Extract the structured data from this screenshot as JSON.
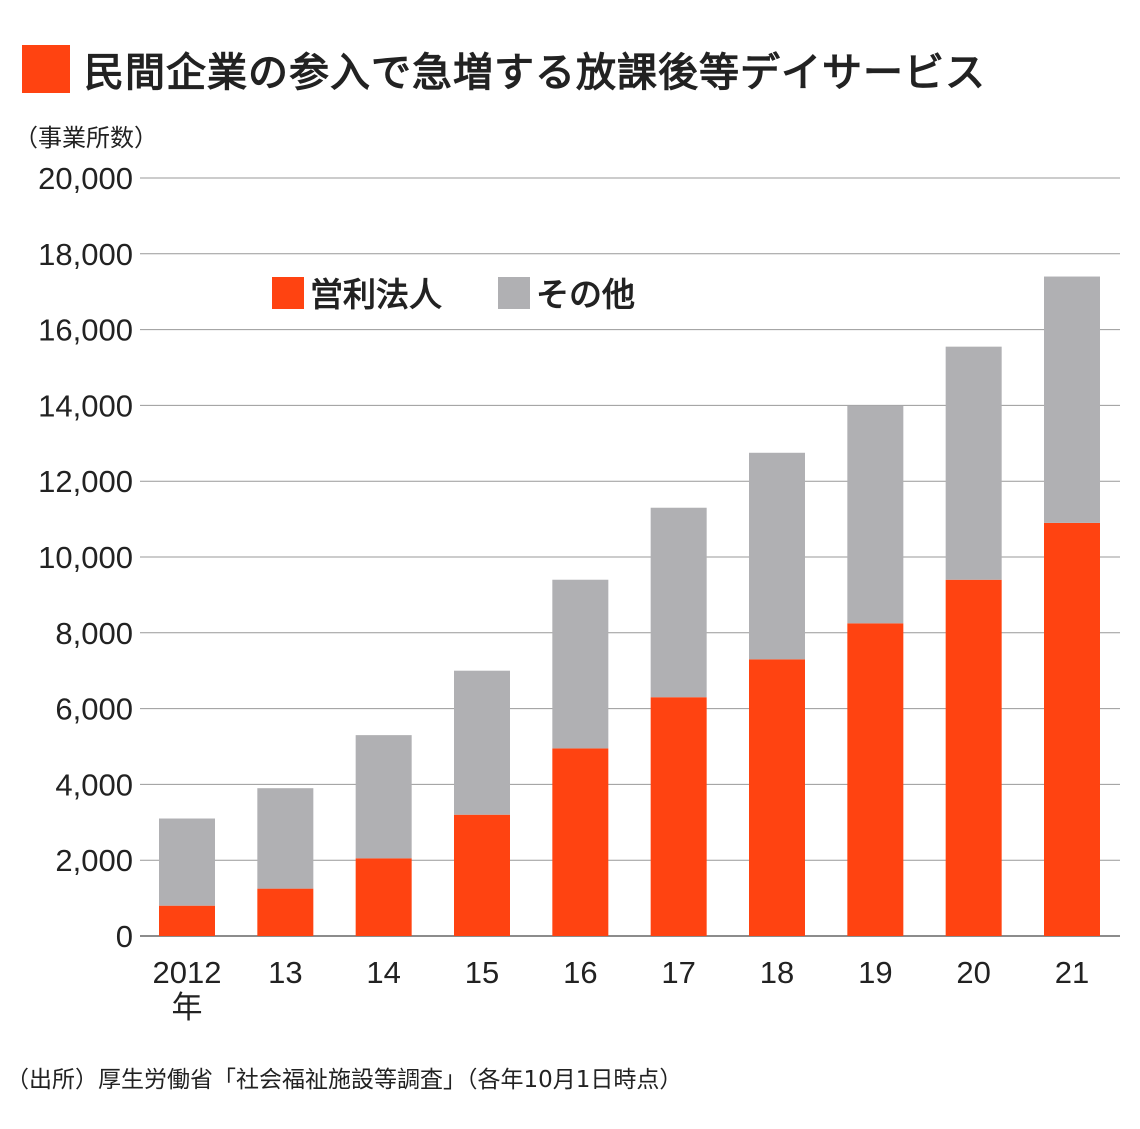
{
  "title": "民間企業の参入で急増する放課後等デイサービス",
  "unit_label": "（事業所数）",
  "source": "（出所）厚生労働省「社会福祉施設等調査」（各年10月1日時点）",
  "colors": {
    "accent": "#ff4311",
    "other": "#b0b0b3",
    "grid": "#999999"
  },
  "chart_data": {
    "type": "bar",
    "stacked": true,
    "categories": [
      "2012",
      "13",
      "14",
      "15",
      "16",
      "17",
      "18",
      "19",
      "20",
      "21"
    ],
    "category_suffix": "年",
    "series": [
      {
        "name": "営利法人",
        "color": "#ff4311",
        "values": [
          800,
          1250,
          2050,
          3200,
          4950,
          6300,
          7300,
          8250,
          9400,
          10900
        ]
      },
      {
        "name": "その他",
        "color": "#b0b0b3",
        "values": [
          2300,
          2650,
          3250,
          3800,
          4450,
          5000,
          5450,
          5750,
          6150,
          6500
        ]
      }
    ],
    "ylim": [
      0,
      20000
    ],
    "yticks": [
      0,
      2000,
      4000,
      6000,
      8000,
      10000,
      12000,
      14000,
      16000,
      18000,
      20000
    ],
    "ytick_labels": [
      "0",
      "2,000",
      "4,000",
      "6,000",
      "8,000",
      "10,000",
      "12,000",
      "14,000",
      "16,000",
      "18,000",
      "20,000"
    ],
    "ylabel": "（事業所数）",
    "legend_position": "top-left",
    "grid": true
  }
}
